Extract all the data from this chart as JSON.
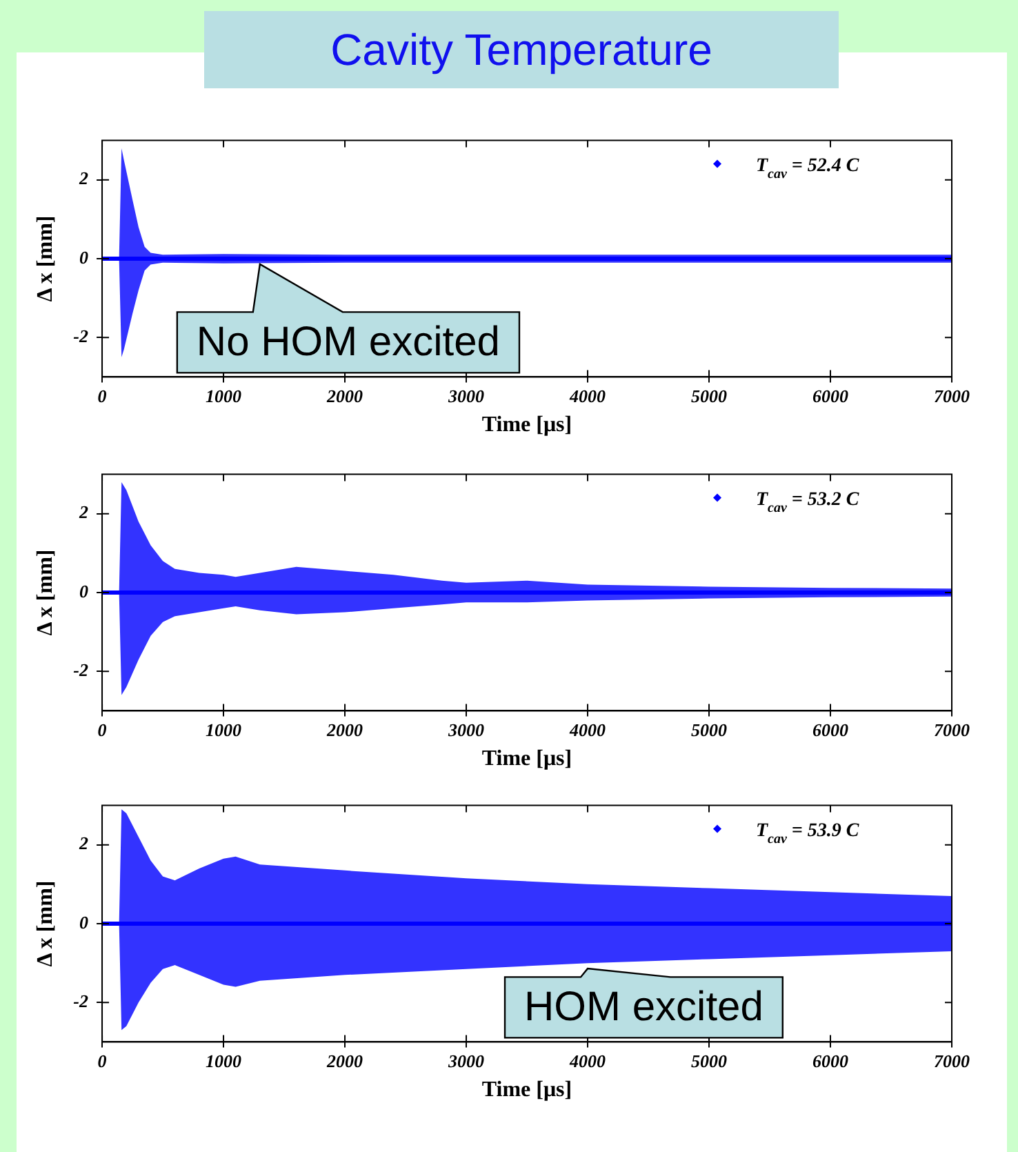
{
  "chart_data": [
    {
      "type": "line",
      "title": "Cavity Temperature",
      "xlabel": "Time [μs]",
      "ylabel": "Δ x [mm]",
      "xlim": [
        0,
        7000
      ],
      "xticks": [
        0,
        1000,
        2000,
        3000,
        4000,
        5000,
        6000,
        7000
      ],
      "ylim": [
        -3,
        3
      ],
      "yticks": [
        -2,
        0,
        2
      ],
      "legend": "top right",
      "series": [
        {
          "name": "T$_{cav}$ = 52.4 C",
          "color": "#0000ff",
          "x": [
            0,
            140,
            160,
            180,
            250,
            300,
            350,
            400,
            500,
            1000,
            2000,
            3000,
            4000,
            5000,
            6000,
            7000
          ],
          "values": [
            0,
            0,
            0,
            0,
            0,
            0,
            0,
            0,
            0,
            0,
            0,
            0,
            0,
            0,
            0,
            0
          ],
          "upper": [
            0.05,
            0.05,
            2.8,
            2.5,
            1.5,
            0.8,
            0.3,
            0.15,
            0.1,
            0.12,
            0.1,
            0.1,
            0.1,
            0.1,
            0.1,
            0.1
          ],
          "lower": [
            -0.05,
            -0.05,
            -2.5,
            -2.3,
            -1.4,
            -0.8,
            -0.3,
            -0.15,
            -0.1,
            -0.12,
            -0.1,
            -0.1,
            -0.1,
            -0.1,
            -0.1,
            -0.1
          ]
        }
      ],
      "annotations": [
        {
          "text": "No HOM excited",
          "x": 1300,
          "y": 0
        }
      ]
    },
    {
      "type": "line",
      "xlabel": "Time [μs]",
      "ylabel": "Δ x [mm]",
      "xlim": [
        0,
        7000
      ],
      "xticks": [
        0,
        1000,
        2000,
        3000,
        4000,
        5000,
        6000,
        7000
      ],
      "ylim": [
        -3,
        3
      ],
      "yticks": [
        -2,
        0,
        2
      ],
      "legend": "top right",
      "series": [
        {
          "name": "T$_{cav}$ = 53.2 C",
          "color": "#0000ff",
          "x": [
            0,
            140,
            160,
            200,
            300,
            400,
            500,
            600,
            800,
            1000,
            1100,
            1300,
            1600,
            2000,
            2400,
            2800,
            3000,
            3500,
            4000,
            5000,
            6000,
            7000
          ],
          "values": [
            0,
            0,
            0,
            0,
            0,
            0,
            0,
            0,
            0,
            0,
            0,
            0,
            0,
            0,
            0,
            0,
            0,
            0,
            0,
            0,
            0,
            0
          ],
          "upper": [
            0.05,
            0.05,
            2.8,
            2.6,
            1.8,
            1.2,
            0.8,
            0.6,
            0.5,
            0.45,
            0.4,
            0.5,
            0.65,
            0.55,
            0.45,
            0.3,
            0.25,
            0.3,
            0.2,
            0.15,
            0.12,
            0.1
          ],
          "lower": [
            -0.05,
            -0.05,
            -2.6,
            -2.4,
            -1.7,
            -1.1,
            -0.75,
            -0.6,
            -0.5,
            -0.4,
            -0.35,
            -0.45,
            -0.55,
            -0.5,
            -0.4,
            -0.3,
            -0.25,
            -0.25,
            -0.2,
            -0.15,
            -0.12,
            -0.1
          ]
        }
      ]
    },
    {
      "type": "line",
      "xlabel": "Time [μs]",
      "ylabel": "Δ x [mm]",
      "xlim": [
        0,
        7000
      ],
      "xticks": [
        0,
        1000,
        2000,
        3000,
        4000,
        5000,
        6000,
        7000
      ],
      "ylim": [
        -3,
        3
      ],
      "yticks": [
        -2,
        0,
        2
      ],
      "legend": "top right",
      "series": [
        {
          "name": "T$_{cav}$ = 53.9 C",
          "color": "#0000ff",
          "x": [
            0,
            140,
            160,
            200,
            300,
            400,
            500,
            600,
            800,
            1000,
            1100,
            1300,
            2000,
            3000,
            4000,
            5000,
            6000,
            7000
          ],
          "values": [
            0,
            0,
            0,
            0,
            0,
            0,
            0,
            0,
            0,
            0,
            0,
            0,
            0,
            0,
            0,
            0,
            0,
            0
          ],
          "upper": [
            0.05,
            0.05,
            2.9,
            2.8,
            2.2,
            1.6,
            1.2,
            1.1,
            1.4,
            1.65,
            1.7,
            1.5,
            1.35,
            1.15,
            1.0,
            0.9,
            0.8,
            0.7
          ],
          "lower": [
            -0.05,
            -0.05,
            -2.7,
            -2.6,
            -2.0,
            -1.5,
            -1.15,
            -1.05,
            -1.3,
            -1.55,
            -1.6,
            -1.45,
            -1.3,
            -1.15,
            -1.0,
            -0.9,
            -0.8,
            -0.7
          ]
        }
      ],
      "annotations": [
        {
          "text": "HOM excited",
          "x": 4000,
          "y": -1
        }
      ]
    }
  ]
}
